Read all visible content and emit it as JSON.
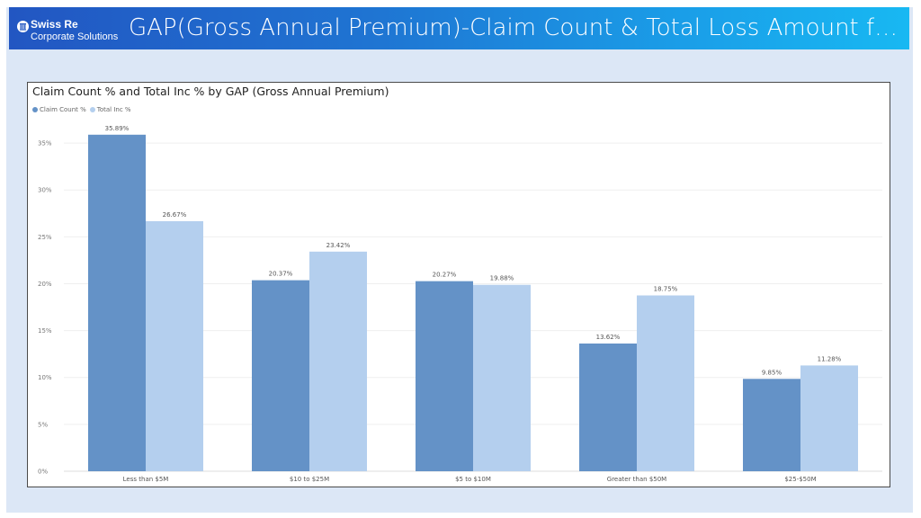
{
  "header": {
    "brand": "Swiss Re",
    "brand_sub": "Corporate Solutions",
    "title": "GAP(Gross Annual Premium)-Claim Count & Total Loss Amount for All S..."
  },
  "colors": {
    "claim_count": "#6492c7",
    "total_inc": "#b4cfee",
    "header_start": "#2256c2",
    "header_end": "#18b8f2",
    "slide_bg": "#dce7f6"
  },
  "chart_data": {
    "type": "bar",
    "title": "Claim Count % and Total Inc % by GAP (Gross Annual Premium)",
    "categories": [
      "Less than $5M",
      "$10 to $25M",
      "$5 to $10M",
      "Greater than $50M",
      "$25-$50M"
    ],
    "series": [
      {
        "name": "Claim Count %",
        "values": [
          35.89,
          20.37,
          20.27,
          13.62,
          9.85
        ],
        "labels": [
          "35.89%",
          "20.37%",
          "20.27%",
          "13.62%",
          "9.85%"
        ]
      },
      {
        "name": "Total Inc %",
        "values": [
          26.67,
          23.42,
          19.88,
          18.75,
          11.28
        ],
        "labels": [
          "26.67%",
          "23.42%",
          "19.88%",
          "18.75%",
          "11.28%"
        ]
      }
    ],
    "ylim": [
      0,
      37.5
    ],
    "yticks": [
      0,
      5,
      10,
      15,
      20,
      25,
      30,
      35
    ],
    "ytick_labels": [
      "0%",
      "5%",
      "10%",
      "15%",
      "20%",
      "25%",
      "30%",
      "35%"
    ],
    "grid": true,
    "legend_position": "top-left",
    "xlabel": "",
    "ylabel": ""
  }
}
